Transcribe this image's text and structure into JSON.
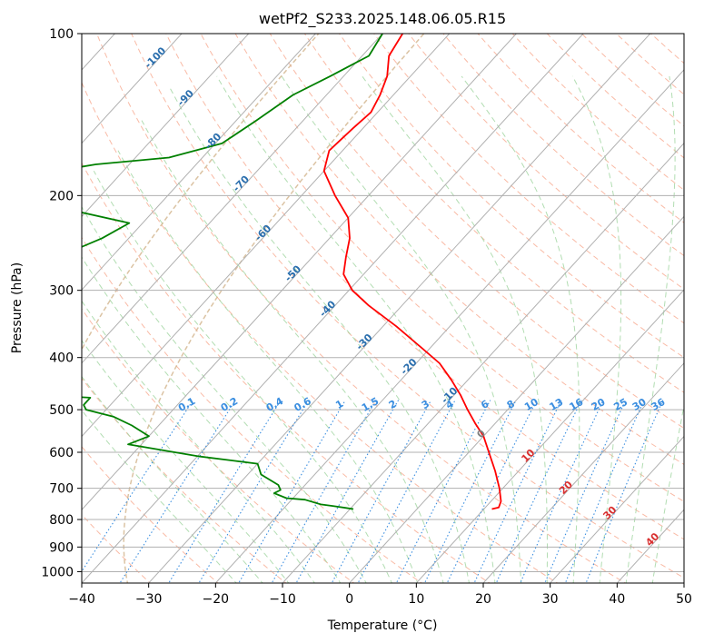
{
  "chart_data": {
    "type": "line",
    "title": "wetPf2_S233.2025.148.06.05.R15",
    "xlabel": "Temperature (°C)",
    "ylabel": "Pressure (hPa)",
    "xlim": [
      -40,
      50
    ],
    "ylim": [
      1050,
      100
    ],
    "y_scale": "log",
    "grid": true,
    "x_ticks": [
      "−40",
      "−30",
      "−20",
      "−10",
      "0",
      "10",
      "20",
      "30",
      "40",
      "50"
    ],
    "y_ticks": [
      "100",
      "200",
      "300",
      "400",
      "500",
      "600",
      "700",
      "800",
      "900",
      "1000"
    ],
    "skew_isotherms": [
      "-100",
      "-90",
      "-80",
      "-70",
      "-60",
      "-50",
      "-40",
      "-30",
      "-20",
      "-10"
    ],
    "mixing_ratio_labels": [
      "0.1",
      "0.2",
      "0.4",
      "0.6",
      "1",
      "1.5",
      "2",
      "3",
      "4",
      "6",
      "8",
      "10",
      "13",
      "16",
      "20",
      "25",
      "30",
      "36"
    ],
    "freezing_label": "0",
    "warm_isotherm_labels": [
      "10",
      "20",
      "30",
      "40"
    ],
    "colors": {
      "temperature": "#ff0000",
      "dewpoint": "#008000",
      "grid": "#b0b0b0",
      "dry_adiabat": "#f7a98e",
      "moist_adiabat": "#9fd49f",
      "mixing_ratio": "#3a8ee0",
      "isotherm_label": "#2b6fae",
      "warm_label": "#d93030",
      "freezing_label": "#808080",
      "curve_brown": "#d2b48c"
    },
    "series": [
      {
        "name": "",
        "color": "#ff0000",
        "points": [
          [
            -67,
            100
          ],
          [
            -66,
            110
          ],
          [
            -63.5,
            120
          ],
          [
            -62,
            130
          ],
          [
            -61,
            140
          ],
          [
            -61.5,
            150
          ],
          [
            -62,
            165
          ],
          [
            -60,
            180
          ],
          [
            -55,
            200
          ],
          [
            -50,
            220
          ],
          [
            -47,
            240
          ],
          [
            -45,
            260
          ],
          [
            -43,
            280
          ],
          [
            -39.5,
            300
          ],
          [
            -35,
            320
          ],
          [
            -28,
            350
          ],
          [
            -22,
            380
          ],
          [
            -16.5,
            410
          ],
          [
            -12.5,
            440
          ],
          [
            -9,
            470
          ],
          [
            -6,
            500
          ],
          [
            -3,
            530
          ],
          [
            0,
            560
          ],
          [
            3,
            600
          ],
          [
            6.5,
            650
          ],
          [
            9.5,
            700
          ],
          [
            11.5,
            740
          ],
          [
            12,
            760
          ],
          [
            11.2,
            765
          ]
        ]
      },
      {
        "name": "",
        "color": "#008000",
        "points": [
          [
            -70,
            100
          ],
          [
            -69,
            110
          ],
          [
            -72,
            120
          ],
          [
            -75,
            130
          ],
          [
            -77,
            145
          ],
          [
            -79,
            160
          ],
          [
            -85,
            170
          ],
          [
            -95,
            175
          ],
          [
            -100,
            180
          ],
          [
            -100,
            200
          ],
          [
            -95,
            210
          ],
          [
            -82,
            225
          ],
          [
            -84,
            240
          ],
          [
            -88,
            260
          ],
          [
            -90,
            275
          ],
          [
            -83,
            290
          ],
          [
            -84,
            305
          ],
          [
            -88,
            315
          ],
          [
            -86,
            335
          ],
          [
            -94,
            355
          ],
          [
            -110,
            365
          ],
          [
            -100,
            380
          ],
          [
            -99,
            400
          ],
          [
            -105,
            410
          ],
          [
            -100,
            450
          ],
          [
            -64,
            475
          ],
          [
            -64,
            490
          ],
          [
            -63,
            500
          ],
          [
            -58,
            515
          ],
          [
            -54,
            535
          ],
          [
            -50,
            560
          ],
          [
            -52,
            580
          ],
          [
            -40,
            610
          ],
          [
            -30,
            630
          ],
          [
            -28,
            660
          ],
          [
            -24,
            690
          ],
          [
            -23,
            705
          ],
          [
            -23.5,
            715
          ],
          [
            -21,
            730
          ],
          [
            -18,
            735
          ],
          [
            -16,
            745
          ],
          [
            -15,
            750
          ],
          [
            -13,
            755
          ],
          [
            -9.5,
            765
          ]
        ]
      }
    ]
  }
}
